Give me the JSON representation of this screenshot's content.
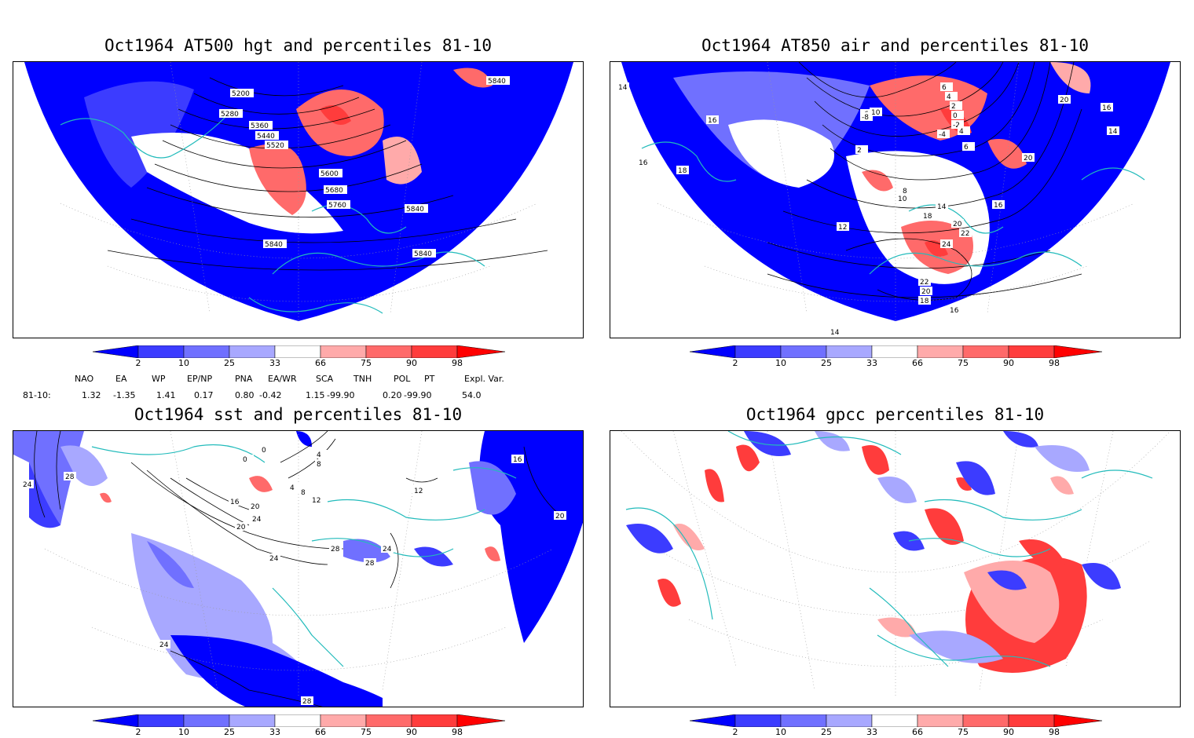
{
  "panels": [
    {
      "title": "Oct1964 AT500 hgt and percentiles 81-10",
      "contour_labels": [
        "5840",
        "5200",
        "5280",
        "5360",
        "5440",
        "5520",
        "5600",
        "5680",
        "5760",
        "5840",
        "5840",
        "5840"
      ]
    },
    {
      "title": "Oct1964 AT850 air and percentiles 81-10",
      "contour_labels": [
        "14",
        "16",
        "16",
        "18",
        "6",
        "4",
        "2",
        "0",
        "-2",
        "-4",
        "-6",
        "-8",
        "10",
        "4",
        "6",
        "20",
        "16",
        "14",
        "20",
        "2",
        "8",
        "10",
        "14",
        "18",
        "20",
        "16",
        "12",
        "22",
        "24",
        "22",
        "20",
        "18",
        "16",
        "14"
      ]
    },
    {
      "title": "Oct1964 sst and percentiles 81-10",
      "contour_labels": [
        "24",
        "28",
        "0",
        "0",
        "4",
        "8",
        "4",
        "8",
        "12",
        "16",
        "20",
        "24",
        "20",
        "24",
        "28",
        "28",
        "24",
        "12",
        "16",
        "20",
        "24",
        "28"
      ]
    },
    {
      "title": "Oct1964 gpcc percentiles 81-10",
      "contour_labels": []
    }
  ],
  "colorbar": {
    "ticks": [
      "2",
      "10",
      "25",
      "33",
      "66",
      "75",
      "90",
      "98"
    ],
    "colors": {
      "dark_blue": "#0000ff",
      "mid_blue": "#3c3cff",
      "blue": "#7070ff",
      "light_blue": "#a8a8ff",
      "white": "#ffffff",
      "light_red": "#ffaaaa",
      "red": "#ff6a6a",
      "mid_red": "#ff3c3c",
      "dark_red": "#ff0000"
    }
  },
  "indices": {
    "header": [
      "NAO",
      "EA",
      "WP",
      "EP/NP",
      "PNA",
      "EA/WR",
      "SCA",
      "TNH",
      "POL",
      "PT",
      "Expl. Var."
    ],
    "row_label": "81-10:",
    "values": [
      "1.32",
      "-1.35",
      "1.41",
      "0.17",
      "0.80",
      "-0.42",
      "1.15",
      "-99.90",
      "0.20",
      "-99.90",
      "54.0"
    ]
  },
  "colors": {
    "coast": "#22bbbb",
    "contour": "#000000",
    "grid": "#999999"
  }
}
